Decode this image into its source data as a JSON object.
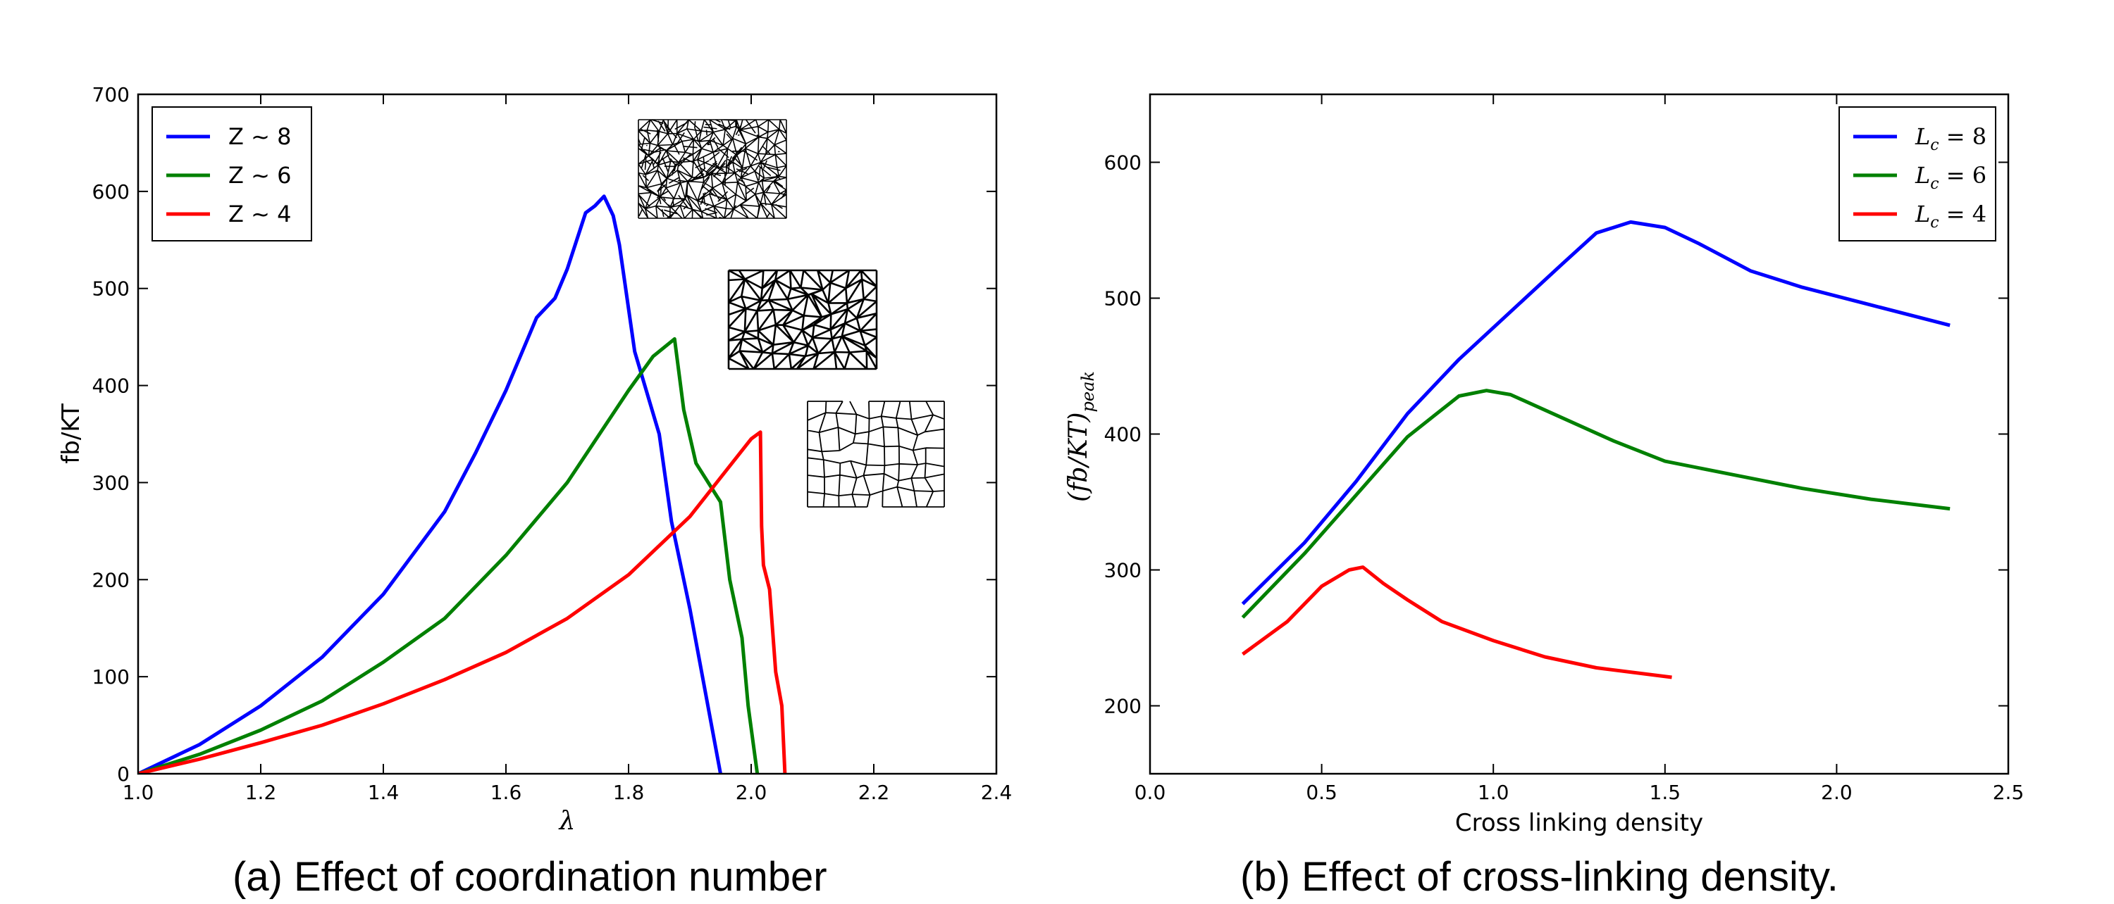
{
  "captions": {
    "a": "(a) Effect of coordination number",
    "b": "(b) Effect of cross-linking density."
  },
  "chart_data": [
    {
      "type": "line",
      "xlabel": "λ",
      "ylabel": "fb/KT",
      "xlim": [
        1.0,
        2.4
      ],
      "ylim": [
        0,
        700
      ],
      "xticks": [
        "1.0",
        "1.2",
        "1.4",
        "1.6",
        "1.8",
        "2.0",
        "2.2",
        "2.4"
      ],
      "yticks": [
        "0",
        "100",
        "200",
        "300",
        "400",
        "500",
        "600",
        "700"
      ],
      "legend": "top-left",
      "grid": false,
      "series": [
        {
          "name": "Z ~ 8",
          "color": "#0000ff",
          "x": [
            1.0,
            1.1,
            1.2,
            1.3,
            1.4,
            1.5,
            1.55,
            1.6,
            1.65,
            1.68,
            1.7,
            1.73,
            1.745,
            1.76,
            1.775,
            1.785,
            1.81,
            1.85,
            1.87,
            1.9,
            1.95
          ],
          "y": [
            0,
            30,
            70,
            120,
            185,
            270,
            330,
            395,
            470,
            490,
            520,
            578,
            585,
            595,
            575,
            545,
            435,
            350,
            260,
            170,
            0
          ]
        },
        {
          "name": "Z ~ 6",
          "color": "#008000",
          "x": [
            1.0,
            1.1,
            1.2,
            1.3,
            1.4,
            1.5,
            1.6,
            1.7,
            1.8,
            1.84,
            1.875,
            1.89,
            1.91,
            1.95,
            1.965,
            1.985,
            1.995,
            2.01
          ],
          "y": [
            0,
            20,
            45,
            75,
            115,
            160,
            225,
            300,
            395,
            430,
            448,
            375,
            320,
            280,
            200,
            140,
            70,
            0
          ]
        },
        {
          "name": "Z ~ 4",
          "color": "#ff0000",
          "x": [
            1.0,
            1.1,
            1.2,
            1.3,
            1.4,
            1.5,
            1.6,
            1.7,
            1.8,
            1.9,
            1.95,
            2.0,
            2.015,
            2.017,
            2.02,
            2.03,
            2.04,
            2.05,
            2.055
          ],
          "y": [
            0,
            15,
            32,
            50,
            72,
            97,
            125,
            160,
            205,
            265,
            305,
            345,
            352,
            255,
            215,
            190,
            105,
            70,
            0
          ]
        }
      ],
      "insets": [
        "triangulated network (Z ~ 8)",
        "triangulated network (Z ~ 6)",
        "cellular network (Z ~ 4)"
      ]
    },
    {
      "type": "line",
      "xlabel": "Cross linking density",
      "ylabel": "(fb/KT)peak",
      "xlim": [
        0.0,
        2.5
      ],
      "ylim": [
        150,
        650
      ],
      "xticks": [
        "0.0",
        "0.5",
        "1.0",
        "1.5",
        "2.0",
        "2.5"
      ],
      "yticks": [
        "200",
        "300",
        "400",
        "500",
        "600"
      ],
      "legend": "top-right",
      "grid": false,
      "series": [
        {
          "name": "Lc = 8",
          "color": "#0000ff",
          "x": [
            0.27,
            0.45,
            0.6,
            0.75,
            0.9,
            1.05,
            1.2,
            1.3,
            1.4,
            1.5,
            1.6,
            1.75,
            1.9,
            2.1,
            2.33
          ],
          "y": [
            275,
            320,
            365,
            415,
            455,
            490,
            525,
            548,
            556,
            552,
            540,
            520,
            508,
            495,
            480
          ]
        },
        {
          "name": "Lc = 6",
          "color": "#008000",
          "x": [
            0.27,
            0.45,
            0.6,
            0.75,
            0.9,
            0.98,
            1.05,
            1.2,
            1.35,
            1.5,
            1.7,
            1.9,
            2.1,
            2.33
          ],
          "y": [
            265,
            312,
            355,
            398,
            428,
            432,
            429,
            412,
            395,
            380,
            370,
            360,
            352,
            345
          ]
        },
        {
          "name": "Lc = 4",
          "color": "#ff0000",
          "x": [
            0.27,
            0.4,
            0.5,
            0.58,
            0.62,
            0.68,
            0.75,
            0.85,
            1.0,
            1.15,
            1.3,
            1.52
          ],
          "y": [
            238,
            262,
            288,
            300,
            302,
            290,
            278,
            262,
            248,
            236,
            228,
            221
          ]
        }
      ]
    }
  ]
}
